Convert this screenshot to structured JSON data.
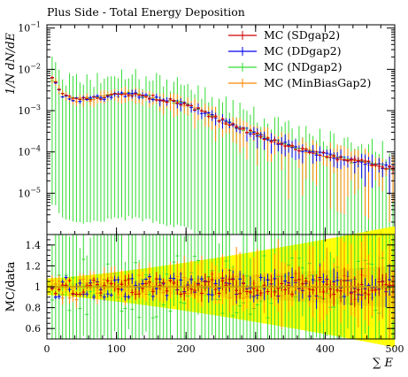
{
  "title": "Plus Side - Total Energy Deposition",
  "colors": {
    "SDgap2": "#cc0000",
    "DDgap2": "#0000ee",
    "NDgap2": "#33dd33",
    "MinBiasGap2": "#ff8800",
    "band_outer": "#ffff00",
    "band_inner": "#e8d000"
  },
  "chart_data": [
    {
      "type": "line",
      "panel": "main",
      "ylabel": "1/N dN/dE",
      "xlim": [
        0,
        500
      ],
      "ylim": [
        1e-06,
        0.12
      ],
      "yscale": "log",
      "yticks": [
        {
          "v": 0.1,
          "b": "10",
          "e": "−1"
        },
        {
          "v": 0.01,
          "b": "10",
          "e": "−2"
        },
        {
          "v": 0.001,
          "b": "10",
          "e": "−3"
        },
        {
          "v": 0.0001,
          "b": "10",
          "e": "−4"
        },
        {
          "v": 1e-05,
          "b": "10",
          "e": "−5"
        }
      ],
      "legend_position": "top-right",
      "series": [
        {
          "name": "MC (SDgap2)",
          "key": "SDgap2"
        },
        {
          "name": "MC (DDgap2)",
          "key": "DDgap2"
        },
        {
          "name": "MC (NDgap2)",
          "key": "NDgap2"
        },
        {
          "name": "MC (MinBiasGap2)",
          "key": "MinBiasGap2"
        }
      ],
      "trend": {
        "x": [
          10,
          20,
          40,
          60,
          80,
          100,
          120,
          140,
          160,
          180,
          200,
          220,
          240,
          260,
          280,
          300,
          320,
          340,
          360,
          380,
          400,
          420,
          440,
          460,
          480,
          500
        ],
        "y": [
          0.006,
          0.0025,
          0.0018,
          0.0019,
          0.0021,
          0.0024,
          0.0025,
          0.0023,
          0.002,
          0.0017,
          0.0014,
          0.001,
          0.0007,
          0.0005,
          0.00037,
          0.00028,
          0.0002,
          0.00016,
          0.00012,
          0.0001,
          8.5e-05,
          7e-05,
          6e-05,
          5.5e-05,
          4.5e-05,
          4e-05
        ]
      }
    },
    {
      "type": "line",
      "panel": "ratio",
      "ylabel": "MC/data",
      "xlabel": "∑ E",
      "xlim": [
        0,
        500
      ],
      "ylim": [
        0.5,
        1.5
      ],
      "yticks": [
        0.6,
        0.8,
        1,
        1.2,
        1.4
      ],
      "xticks": [
        0,
        100,
        200,
        300,
        400,
        500
      ],
      "reference": 1.0
    }
  ]
}
